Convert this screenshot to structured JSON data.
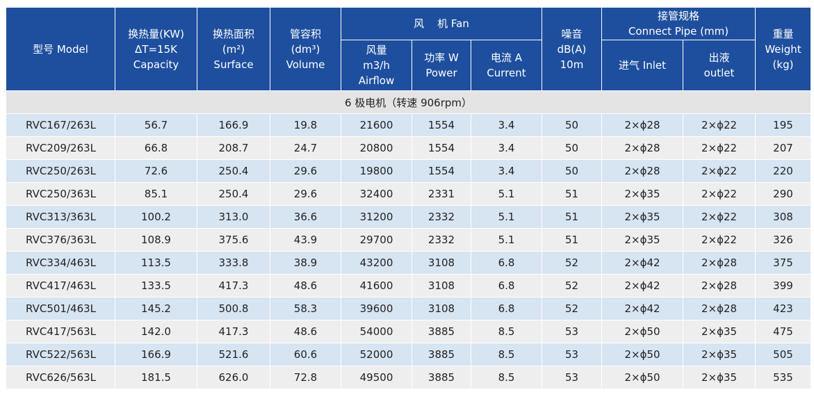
{
  "header": {
    "model": "型号 Model",
    "capacity": [
      "换热量(KW)",
      "ΔT=15K",
      "Capacity"
    ],
    "surface": [
      "换热面积",
      "(m²)",
      "Surface"
    ],
    "volume": [
      "管容积",
      "(dm³)",
      "Volume"
    ],
    "fan": "风    机 Fan",
    "airflow": [
      "风量",
      "m3/h",
      "Airflow"
    ],
    "power": [
      "功率 W",
      "Power"
    ],
    "current": [
      "电流 A",
      "Current"
    ],
    "noise": [
      "噪音",
      "dB(A)",
      "10m"
    ],
    "connect_pipe": [
      "接管规格",
      "Connect Pipe (mm)"
    ],
    "inlet": "进气 Inlet",
    "outlet": [
      "出液",
      "outlet"
    ],
    "weight": [
      "重量",
      "Weight",
      "(kg)"
    ]
  },
  "section_label": "6 极电机（转速 906rpm）",
  "rows": [
    [
      "RVC167/263L",
      "56.7",
      "166.9",
      "19.8",
      "21600",
      "1554",
      "3.4",
      "50",
      "2×ϕ28",
      "2×ϕ22",
      "195"
    ],
    [
      "RVC209/263L",
      "66.8",
      "208.7",
      "24.7",
      "20800",
      "1554",
      "3.4",
      "50",
      "2×ϕ28",
      "2×ϕ22",
      "207"
    ],
    [
      "RVC250/263L",
      "72.6",
      "250.4",
      "29.6",
      "19800",
      "1554",
      "3.4",
      "50",
      "2×ϕ28",
      "2×ϕ22",
      "220"
    ],
    [
      "RVC250/363L",
      "85.1",
      "250.4",
      "29.6",
      "32400",
      "2331",
      "5.1",
      "51",
      "2×ϕ35",
      "2×ϕ22",
      "290"
    ],
    [
      "RVC313/363L",
      "100.2",
      "313.0",
      "36.6",
      "31200",
      "2332",
      "5.1",
      "51",
      "2×ϕ35",
      "2×ϕ22",
      "308"
    ],
    [
      "RVC376/363L",
      "108.9",
      "375.6",
      "43.9",
      "29700",
      "2332",
      "5.1",
      "51",
      "2×ϕ35",
      "2×ϕ22",
      "326"
    ],
    [
      "RVC334/463L",
      "113.5",
      "333.8",
      "38.9",
      "43200",
      "3108",
      "6.8",
      "52",
      "2×ϕ42",
      "2×ϕ28",
      "375"
    ],
    [
      "RVC417/463L",
      "133.5",
      "417.3",
      "48.6",
      "41600",
      "3108",
      "6.8",
      "52",
      "2×ϕ42",
      "2×ϕ28",
      "399"
    ],
    [
      "RVC501/463L",
      "145.2",
      "500.8",
      "58.3",
      "39600",
      "3108",
      "6.8",
      "52",
      "2×ϕ42",
      "2×ϕ28",
      "423"
    ],
    [
      "RVC417/563L",
      "142.0",
      "417.3",
      "48.6",
      "54000",
      "3885",
      "8.5",
      "53",
      "2×ϕ50",
      "2×ϕ35",
      "475"
    ],
    [
      "RVC522/563L",
      "166.9",
      "521.6",
      "60.6",
      "52000",
      "3885",
      "8.5",
      "53",
      "2×ϕ50",
      "2×ϕ35",
      "505"
    ],
    [
      "RVC626/563L",
      "181.5",
      "626.0",
      "72.8",
      "49500",
      "3885",
      "8.5",
      "53",
      "2×ϕ50",
      "2×ϕ35",
      "535"
    ]
  ],
  "colors": {
    "header_bg": "#1e4f9e",
    "header_text": "#ffffff",
    "row_odd": "#d7e4f2",
    "row_even": "#eeeeee",
    "section_bg": "#e4e4e4"
  }
}
